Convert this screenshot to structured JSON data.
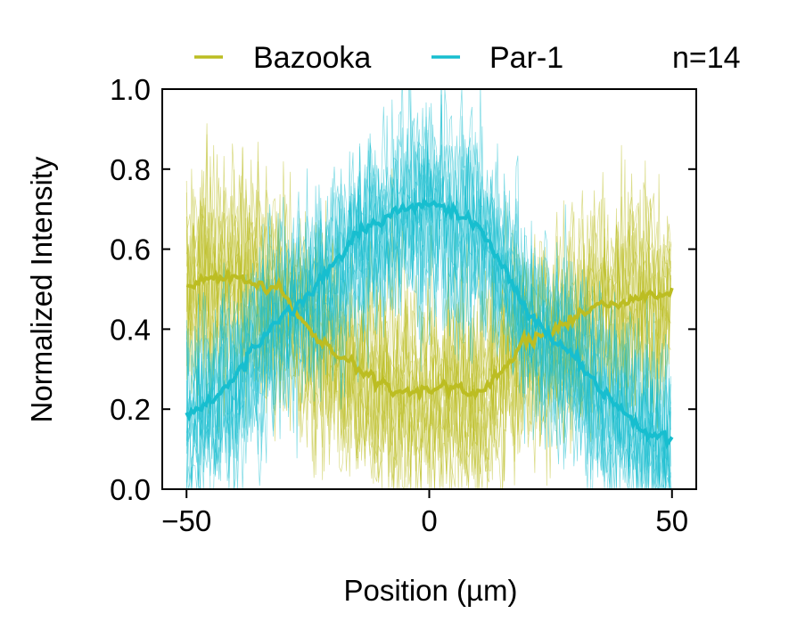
{
  "chart_data": {
    "type": "line",
    "xlabel": "Position (µm)",
    "ylabel": "Normalized Intensity",
    "xlim": [
      -55,
      55
    ],
    "ylim": [
      0,
      1.0
    ],
    "xticks": [
      -50,
      0,
      50
    ],
    "xtick_labels": [
      "−50",
      "0",
      "50"
    ],
    "yticks": [
      0.0,
      0.2,
      0.4,
      0.6,
      0.8,
      1.0
    ],
    "ytick_labels": [
      "0.0",
      "0.2",
      "0.4",
      "0.6",
      "0.8",
      "1.0"
    ],
    "annotation": "n=14",
    "legend_position": "top",
    "grid": false,
    "series": [
      {
        "name": "Bazooka",
        "color": "#bcbd22",
        "mean": {
          "x": [
            -50,
            -45,
            -40,
            -35,
            -30,
            -25,
            -20,
            -15,
            -10,
            -5,
            0,
            5,
            10,
            15,
            20,
            25,
            30,
            35,
            40,
            45,
            50
          ],
          "y": [
            0.51,
            0.53,
            0.53,
            0.51,
            0.49,
            0.4,
            0.35,
            0.3,
            0.26,
            0.24,
            0.25,
            0.25,
            0.24,
            0.3,
            0.37,
            0.39,
            0.43,
            0.46,
            0.47,
            0.49,
            0.48
          ]
        },
        "individual_trace_count": 14,
        "individual_trace_spread": 0.2
      },
      {
        "name": "Par-1",
        "color": "#17becf",
        "mean": {
          "x": [
            -50,
            -45,
            -40,
            -35,
            -30,
            -25,
            -20,
            -15,
            -10,
            -5,
            0,
            5,
            10,
            15,
            20,
            25,
            30,
            35,
            40,
            45,
            50
          ],
          "y": [
            0.18,
            0.22,
            0.28,
            0.37,
            0.44,
            0.48,
            0.56,
            0.64,
            0.67,
            0.7,
            0.72,
            0.69,
            0.66,
            0.56,
            0.45,
            0.38,
            0.33,
            0.25,
            0.19,
            0.14,
            0.12
          ]
        },
        "individual_trace_count": 14,
        "individual_trace_spread": 0.2
      }
    ]
  }
}
